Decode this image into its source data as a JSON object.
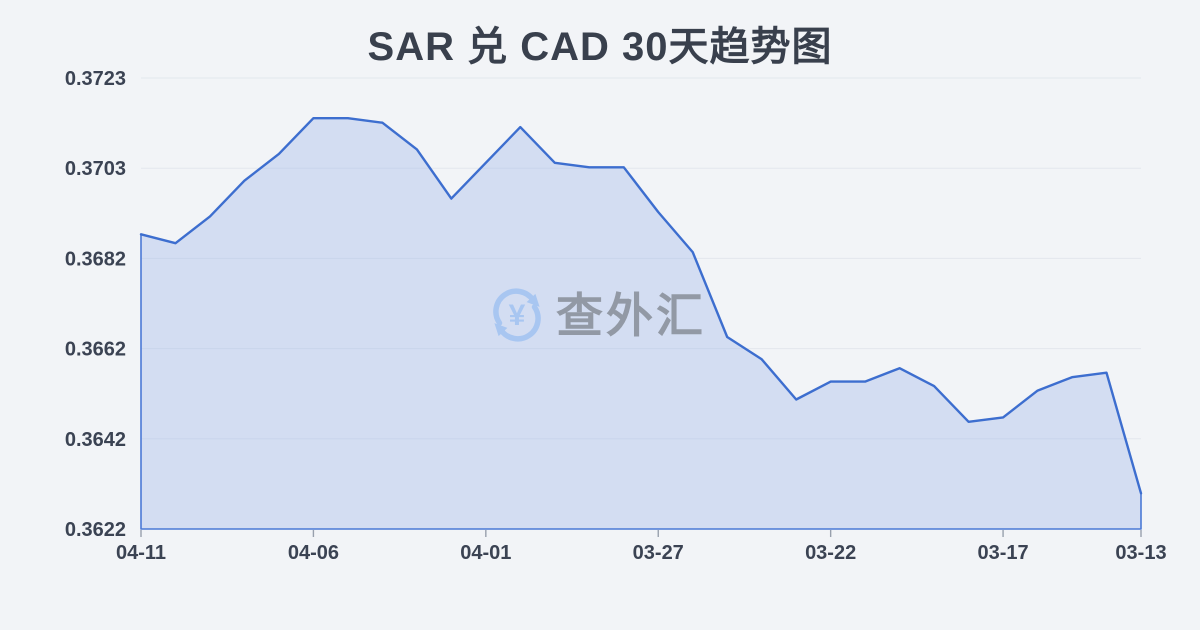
{
  "page": {
    "background": "#f2f4f7"
  },
  "watermark": {
    "text": "查外汇",
    "icon": "yen-exchange-icon",
    "icon_color": "#a6c5f1",
    "text_color": "#8f96a1"
  },
  "chart_data": {
    "type": "area",
    "title": "SAR 兑 CAD 30天趋势图",
    "x": [
      "04-11",
      "04-10",
      "04-09",
      "04-08",
      "04-07",
      "04-06",
      "04-05",
      "04-04",
      "04-03",
      "04-02",
      "04-01",
      "03-31",
      "03-30",
      "03-29",
      "03-28",
      "03-27",
      "03-26",
      "03-25",
      "03-24",
      "03-23",
      "03-22",
      "03-21",
      "03-20",
      "03-19",
      "03-18",
      "03-17",
      "03-16",
      "03-15",
      "03-14",
      "03-13"
    ],
    "values": [
      0.3688,
      0.3686,
      0.3692,
      0.37,
      0.3706,
      0.3714,
      0.3714,
      0.3713,
      0.3707,
      0.3696,
      0.3704,
      0.3712,
      0.3704,
      0.3703,
      0.3703,
      0.3693,
      0.3684,
      0.3665,
      0.366,
      0.3651,
      0.3655,
      0.3655,
      0.3658,
      0.3654,
      0.3646,
      0.3647,
      0.3653,
      0.3656,
      0.3657,
      0.363
    ],
    "x_tick_labels": [
      "04-11",
      "04-06",
      "04-01",
      "03-27",
      "03-22",
      "03-17",
      "03-13"
    ],
    "y_tick_labels": [
      "0.3723",
      "0.3703",
      "0.3682",
      "0.3662",
      "0.3642",
      "0.3622"
    ],
    "ylim": [
      0.3622,
      0.3723
    ],
    "xlabel": "",
    "ylabel": "",
    "grid": true,
    "legend": "none",
    "line_color": "#3d6ecf",
    "fill_color": "#d9e2f5",
    "title_color": "#39404d",
    "axis_label_color": "#3b4353"
  }
}
